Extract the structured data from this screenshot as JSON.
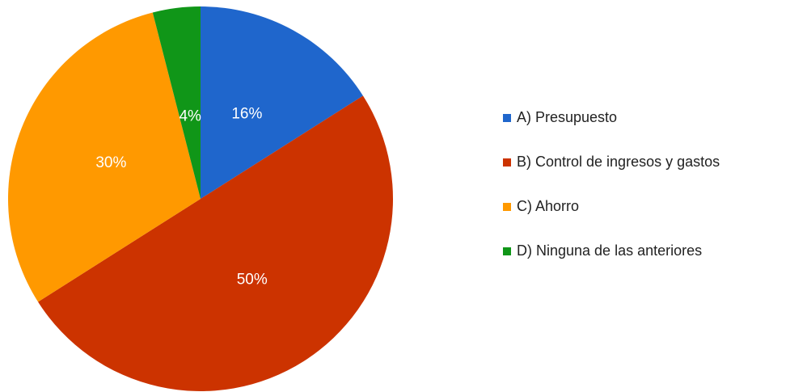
{
  "chart_data": {
    "type": "pie",
    "categories": [
      "A) Presupuesto",
      "B) Control de ingresos y gastos",
      "C) Ahorro",
      "D) Ninguna de las anteriores"
    ],
    "values": [
      16,
      50,
      30,
      4
    ],
    "value_labels": [
      "16%",
      "50%",
      "30%",
      "4%"
    ],
    "colors": [
      "#1f66cc",
      "#cc3300",
      "#ff9900",
      "#109618"
    ],
    "legend": "right"
  }
}
